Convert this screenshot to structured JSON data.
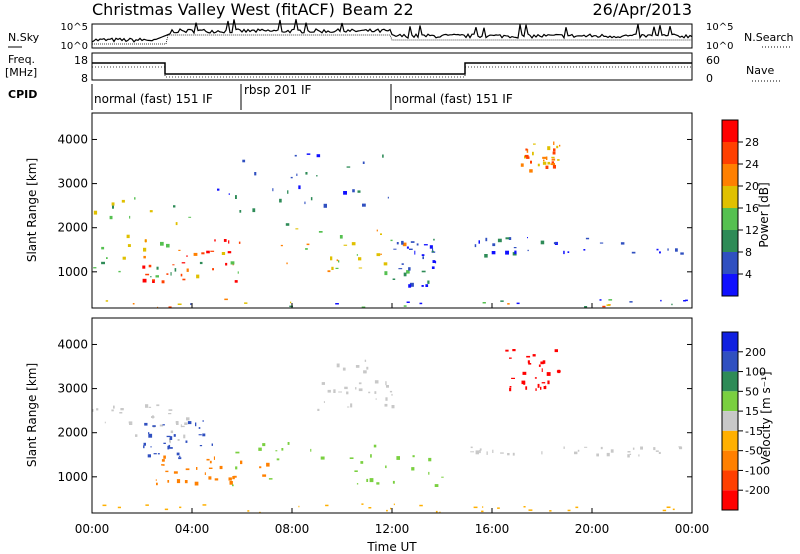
{
  "header": {
    "station": "Christmas Valley West (fitACF)",
    "beam": "Beam 22",
    "date": "26/Apr/2013"
  },
  "strip_labels": {
    "nsky": "N.Sky",
    "nsearch": "N.Search",
    "freq_top": "Freq.",
    "freq_unit": "[MHz]",
    "nave": "Nave",
    "cpid": "CPID",
    "ticks_noise_left": [
      "10^5",
      "10^0"
    ],
    "ticks_noise_right": [
      "10^5",
      "10^0"
    ],
    "ticks_freq_left": [
      "18",
      "8"
    ],
    "ticks_freq_right": [
      "60",
      "0"
    ]
  },
  "cpid_segments": [
    {
      "label": "normal (fast) 151 IF",
      "start_h": 0.0,
      "end_h": 6.0
    },
    {
      "label": "rbsp 201 IF",
      "start_h": 6.0,
      "end_h": 12.0
    },
    {
      "label": "normal (fast) 151 IF",
      "start_h": 12.0,
      "end_h": 24.0
    }
  ],
  "axes": {
    "ylabel": "Slant Range [km]",
    "xlabel": "Time UT",
    "x_ticks": [
      "00:00",
      "04:00",
      "08:00",
      "12:00",
      "16:00",
      "20:00",
      "00:00"
    ],
    "y_ticks": [
      "1000",
      "2000",
      "3000",
      "4000"
    ]
  },
  "colorbars": {
    "power": {
      "label": "Power [dB]",
      "ticks": [
        "4",
        "8",
        "12",
        "16",
        "20",
        "24",
        "28"
      ],
      "colors": [
        "#1010ff",
        "#3050c0",
        "#2e8b57",
        "#55c050",
        "#e0c000",
        "#ff8000",
        "#ff4000",
        "#ff0000"
      ]
    },
    "velocity": {
      "label": "Velocity [m s⁻¹]",
      "ticks": [
        "200",
        "100",
        "50",
        "15",
        "-15",
        "-50",
        "-100",
        "-200"
      ],
      "colors": [
        "#1020e0",
        "#3050c0",
        "#2e8b57",
        "#7ad040",
        "#c8c8c8",
        "#ffb000",
        "#ff8000",
        "#ff4000",
        "#ff0000"
      ]
    }
  },
  "chart_data": [
    {
      "type": "heatmap",
      "title": "Power",
      "xlabel": "Time UT",
      "ylabel": "Slant Range [km]",
      "xlim": [
        0,
        24
      ],
      "ylim": [
        180,
        4600
      ],
      "colorbar": {
        "label": "Power [dB]",
        "range": [
          0,
          32
        ]
      },
      "regions": [
        {
          "t": [
            0,
            5
          ],
          "r": [
            900,
            2700
          ],
          "value": 14
        },
        {
          "t": [
            2,
            6
          ],
          "r": [
            800,
            1800
          ],
          "value": 27
        },
        {
          "t": [
            4,
            13
          ],
          "r": [
            1000,
            2000
          ],
          "value": 18
        },
        {
          "t": [
            5,
            12
          ],
          "r": [
            2000,
            3700
          ],
          "value": 6
        },
        {
          "t": [
            12,
            14
          ],
          "r": [
            700,
            1800
          ],
          "value": 5
        },
        {
          "t": [
            15,
            24
          ],
          "r": [
            1400,
            1800
          ],
          "value": 5
        },
        {
          "t": [
            17,
            18.7
          ],
          "r": [
            3300,
            4000
          ],
          "value": 22
        },
        {
          "t": [
            0,
            24
          ],
          "r": [
            200,
            400
          ],
          "value": 10
        }
      ]
    },
    {
      "type": "heatmap",
      "title": "Velocity",
      "xlabel": "Time UT",
      "ylabel": "Slant Range [km]",
      "xlim": [
        0,
        24
      ],
      "ylim": [
        180,
        4600
      ],
      "colorbar": {
        "label": "Velocity [m s⁻¹]",
        "range": [
          -250,
          250
        ]
      },
      "regions": [
        {
          "t": [
            0,
            4
          ],
          "r": [
            1800,
            2700
          ],
          "value": 0
        },
        {
          "t": [
            2,
            5
          ],
          "r": [
            1400,
            2300
          ],
          "value": 150
        },
        {
          "t": [
            2,
            7
          ],
          "r": [
            800,
            1500
          ],
          "value": -60
        },
        {
          "t": [
            5,
            14
          ],
          "r": [
            800,
            1800
          ],
          "value": 40
        },
        {
          "t": [
            9,
            12
          ],
          "r": [
            2500,
            3700
          ],
          "value": 10
        },
        {
          "t": [
            15,
            24
          ],
          "r": [
            1500,
            1700
          ],
          "value": 0
        },
        {
          "t": [
            16.5,
            18.7
          ],
          "r": [
            3000,
            3900
          ],
          "value": -220
        },
        {
          "t": [
            0,
            24
          ],
          "r": [
            200,
            400
          ],
          "value": -30
        }
      ]
    }
  ]
}
